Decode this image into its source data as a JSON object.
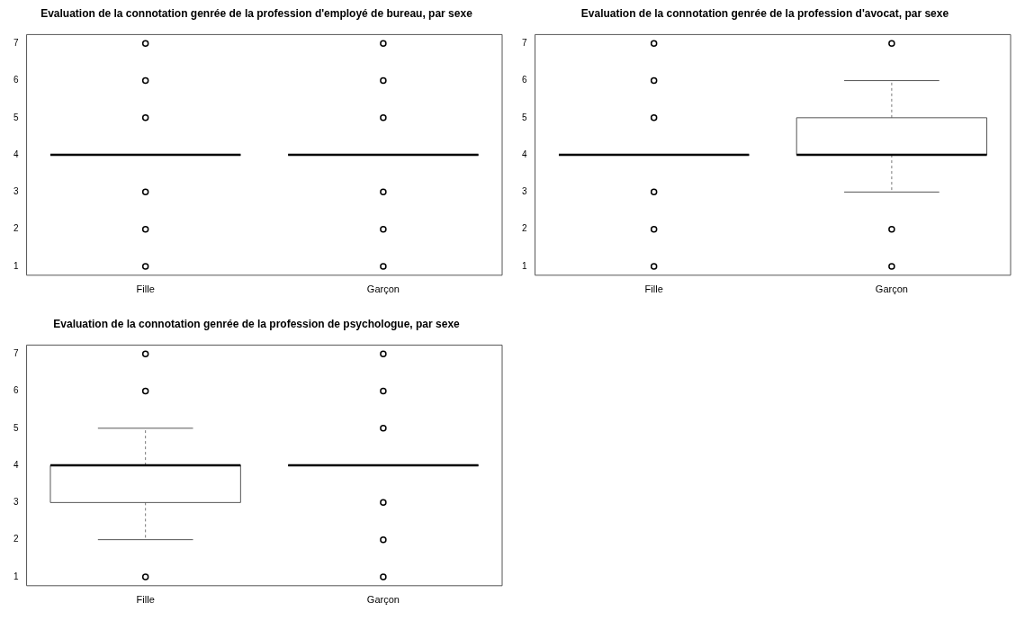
{
  "chart_data": [
    {
      "type": "box",
      "title": "Evaluation de la connotation genrée de la profession d'employé de bureau, par sexe",
      "categories": [
        "Fille",
        "Garçon"
      ],
      "ylim": [
        0.76,
        7.24
      ],
      "yticks": [
        1,
        2,
        3,
        4,
        5,
        6,
        7
      ],
      "boxes": [
        {
          "low": 4,
          "q1": 4,
          "median": 4,
          "q3": 4,
          "high": 4,
          "outliers": [
            1,
            2,
            3,
            5,
            6,
            7
          ]
        },
        {
          "low": 4,
          "q1": 4,
          "median": 4,
          "q3": 4,
          "high": 4,
          "outliers": [
            1,
            2,
            3,
            5,
            6,
            7
          ]
        }
      ]
    },
    {
      "type": "box",
      "title": "Evaluation de la connotation genrée de la profession d'avocat, par sexe",
      "categories": [
        "Fille",
        "Garçon"
      ],
      "ylim": [
        0.76,
        7.24
      ],
      "yticks": [
        1,
        2,
        3,
        4,
        5,
        6,
        7
      ],
      "boxes": [
        {
          "low": 4,
          "q1": 4,
          "median": 4,
          "q3": 4,
          "high": 4,
          "outliers": [
            1,
            2,
            3,
            5,
            6,
            7
          ]
        },
        {
          "low": 3,
          "q1": 4,
          "median": 4,
          "q3": 5,
          "high": 6,
          "outliers": [
            1,
            2,
            7
          ]
        }
      ]
    },
    {
      "type": "box",
      "title": "Evaluation de la connotation genrée de la profession de psychologue, par sexe",
      "categories": [
        "Fille",
        "Garçon"
      ],
      "ylim": [
        0.76,
        7.24
      ],
      "yticks": [
        1,
        2,
        3,
        4,
        5,
        6,
        7
      ],
      "boxes": [
        {
          "low": 2,
          "q1": 3,
          "median": 4,
          "q3": 4,
          "high": 5,
          "outliers": [
            1,
            6,
            7
          ]
        },
        {
          "low": 4,
          "q1": 4,
          "median": 4,
          "q3": 4,
          "high": 4,
          "outliers": [
            1,
            2,
            3,
            5,
            6,
            7
          ]
        }
      ]
    }
  ]
}
